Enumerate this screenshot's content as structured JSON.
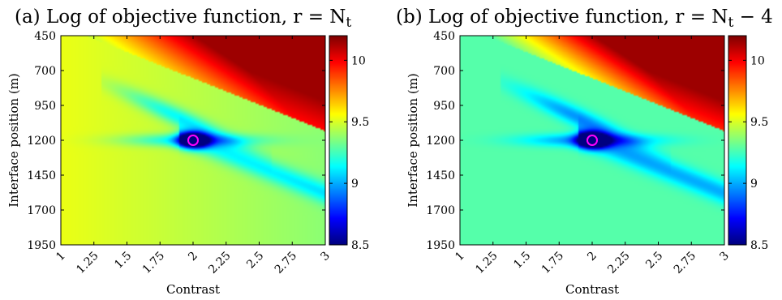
{
  "chart_data": [
    {
      "type": "heatmap",
      "title": "(a) Log of objective function, r = N",
      "title_sub": "t",
      "title_suffix": "",
      "xlabel": "Contrast",
      "ylabel": "Interface position (m)",
      "x_ticks": [
        "1",
        "1.25",
        "1.5",
        "1.75",
        "2",
        "2.25",
        "2.5",
        "2.75",
        "3"
      ],
      "y_ticks": [
        "450",
        "700",
        "950",
        "1200",
        "1450",
        "1700",
        "1950"
      ],
      "xlim": [
        1,
        3
      ],
      "ylim": [
        450,
        1950
      ],
      "colorbar": {
        "ticks": [
          "8.5",
          "9",
          "9.5",
          "10"
        ],
        "range": [
          8.5,
          10.2
        ]
      },
      "background_value": 9.45,
      "upper_right_max": 10.15,
      "minimum": {
        "contrast": 2.0,
        "position": 1200,
        "value": 8.5
      },
      "marker": "magenta-circle"
    },
    {
      "type": "heatmap",
      "title": "(b) Log of objective function, r = N",
      "title_sub": "t",
      "title_suffix": " − 4",
      "xlabel": "Contrast",
      "ylabel": "Interface position (m)",
      "x_ticks": [
        "1",
        "1.25",
        "1.5",
        "1.75",
        "2",
        "2.25",
        "2.5",
        "2.75",
        "3"
      ],
      "y_ticks": [
        "450",
        "700",
        "950",
        "1200",
        "1450",
        "1700",
        "1950"
      ],
      "xlim": [
        1,
        3
      ],
      "ylim": [
        450,
        1950
      ],
      "colorbar": {
        "ticks": [
          "8.5",
          "9",
          "9.5",
          "10"
        ],
        "range": [
          8.5,
          10.2
        ]
      },
      "background_value": 9.25,
      "upper_right_max": 10.15,
      "minimum": {
        "contrast": 2.0,
        "position": 1200,
        "value": 8.5
      },
      "marker": "magenta-circle"
    }
  ]
}
